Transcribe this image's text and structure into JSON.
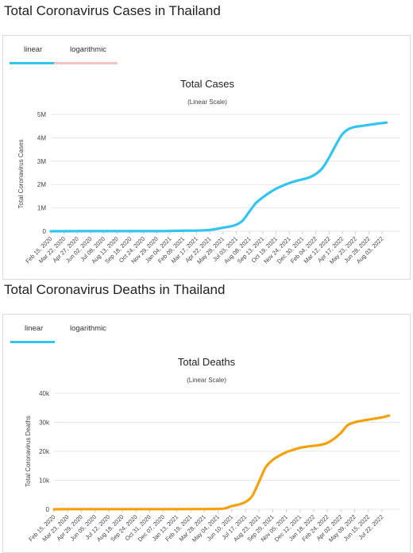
{
  "cases": {
    "section_title": "Total Coronavirus Cases in Thailand",
    "tabs": [
      "linear",
      "logarithmic"
    ],
    "chart_data": {
      "type": "line",
      "title": "Total Cases",
      "subtitle": "(Linear Scale)",
      "ylabel": "Total Coronavirus Cases",
      "xlabel": "",
      "ylim": [
        0,
        5000000
      ],
      "yticks": [
        0,
        1000000,
        2000000,
        3000000,
        4000000,
        5000000
      ],
      "ytick_labels": [
        "0",
        "1M",
        "2M",
        "3M",
        "4M",
        "5M"
      ],
      "xtick_labels": [
        "Feb 15, 2020",
        "Mar 22, 2020",
        "Apr 27, 2020",
        "Jun 02, 2020",
        "Jul 08, 2020",
        "Aug 13, 2020",
        "Sep 18, 2020",
        "Oct 24, 2020",
        "Nov 29, 2020",
        "Jan 04, 2021",
        "Feb 09, 2021",
        "Mar 17, 2021",
        "Apr 22, 2021",
        "May 28, 2021",
        "Jul 03, 2021",
        "Aug 08, 2021",
        "Sep 13, 2021",
        "Oct 19, 2021",
        "Nov 24, 2021",
        "Dec 30, 2021",
        "Feb 04, 2022",
        "Mar 12, 2022",
        "Apr 17, 2022",
        "May 23, 2022",
        "Jun 28, 2022",
        "Aug 03, 2022"
      ],
      "color": "#33c4f0",
      "grid": true,
      "series": [
        {
          "x": [
            "Feb 15, 2020",
            "Mar 22, 2020",
            "Apr 27, 2020",
            "Jun 02, 2020",
            "Jul 08, 2020",
            "Aug 13, 2020",
            "Sep 18, 2020",
            "Oct 24, 2020",
            "Nov 29, 2020",
            "Jan 04, 2021",
            "Feb 09, 2021",
            "Mar 17, 2021",
            "Apr 22, 2021",
            "May 28, 2021",
            "Jun 15, 2021",
            "Jul 03, 2021",
            "Jul 20, 2021",
            "Aug 08, 2021",
            "Aug 25, 2021",
            "Sep 13, 2021",
            "Oct 01, 2021",
            "Oct 19, 2021",
            "Nov 06, 2021",
            "Nov 24, 2021",
            "Dec 12, 2021",
            "Dec 30, 2021",
            "Jan 17, 2022",
            "Feb 04, 2022",
            "Feb 22, 2022",
            "Mar 12, 2022",
            "Mar 29, 2022",
            "Apr 17, 2022",
            "May 05, 2022",
            "May 23, 2022",
            "Jun 10, 2022",
            "Jun 28, 2022",
            "Jul 15, 2022",
            "Aug 03, 2022",
            "Aug 15, 2022"
          ],
          "y": [
            0,
            1000,
            3000,
            3100,
            3200,
            3400,
            3500,
            3800,
            4000,
            9000,
            25000,
            27000,
            55000,
            150000,
            200000,
            280000,
            450000,
            850000,
            1200000,
            1450000,
            1650000,
            1820000,
            1950000,
            2060000,
            2150000,
            2220000,
            2300000,
            2450000,
            2700000,
            3150000,
            3650000,
            4150000,
            4380000,
            4470000,
            4510000,
            4550000,
            4590000,
            4630000,
            4650000
          ]
        }
      ]
    }
  },
  "deaths": {
    "section_title": "Total Coronavirus Deaths in Thailand",
    "tabs": [
      "linear",
      "logarithmic"
    ],
    "chart_data": {
      "type": "line",
      "title": "Total Deaths",
      "subtitle": "(Linear Scale)",
      "ylabel": "Total Coronavirus Deaths",
      "xlabel": "",
      "ylim": [
        0,
        40000
      ],
      "yticks": [
        0,
        10000,
        20000,
        30000,
        40000
      ],
      "ytick_labels": [
        "0",
        "10k",
        "20k",
        "30k",
        "40k"
      ],
      "xtick_labels": [
        "Feb 15, 2020",
        "Mar 23, 2020",
        "Apr 29, 2020",
        "Jun 05, 2020",
        "Jul 12, 2020",
        "Aug 18, 2020",
        "Sep 24, 2020",
        "Oct 31, 2020",
        "Dec 07, 2020",
        "Jan 13, 2021",
        "Feb 19, 2021",
        "Mar 28, 2021",
        "May 04, 2021",
        "Jun 10, 2021",
        "Jul 17, 2021",
        "Aug 23, 2021",
        "Sep 29, 2021",
        "Nov 05, 2021",
        "Dec 12, 2021",
        "Jan 18, 2022",
        "Feb 24, 2022",
        "Apr 02, 2022",
        "May 09, 2022",
        "Jun 15, 2022",
        "Jul 22, 2022"
      ],
      "color": "#f5a10e",
      "grid": true,
      "series": [
        {
          "x": [
            "Feb 15, 2020",
            "Mar 23, 2020",
            "Apr 29, 2020",
            "Jun 05, 2020",
            "Jul 12, 2020",
            "Aug 18, 2020",
            "Sep 24, 2020",
            "Oct 31, 2020",
            "Dec 07, 2020",
            "Jan 13, 2021",
            "Feb 19, 2021",
            "Mar 28, 2021",
            "May 04, 2021",
            "May 22, 2021",
            "Jun 10, 2021",
            "Jun 28, 2021",
            "Jul 17, 2021",
            "Aug 04, 2021",
            "Aug 23, 2021",
            "Sep 10, 2021",
            "Sep 29, 2021",
            "Oct 17, 2021",
            "Nov 05, 2021",
            "Nov 23, 2021",
            "Dec 12, 2021",
            "Dec 30, 2021",
            "Jan 18, 2022",
            "Feb 05, 2022",
            "Feb 24, 2022",
            "Mar 14, 2022",
            "Apr 02, 2022",
            "Apr 20, 2022",
            "May 09, 2022",
            "May 27, 2022",
            "Jun 15, 2022",
            "Jul 03, 2022",
            "Jul 22, 2022",
            "Aug 10, 2022"
          ],
          "y": [
            0,
            50,
            55,
            57,
            58,
            59,
            59,
            60,
            60,
            67,
            82,
            94,
            130,
            300,
            1100,
            1600,
            2500,
            4500,
            9500,
            14500,
            17000,
            18500,
            19700,
            20500,
            21200,
            21600,
            21900,
            22200,
            22900,
            24300,
            26400,
            29000,
            30000,
            30500,
            30900,
            31300,
            31700,
            32300
          ]
        }
      ]
    }
  }
}
